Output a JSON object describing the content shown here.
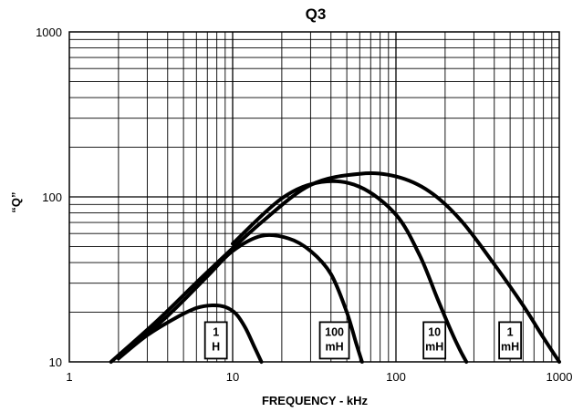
{
  "chart_data": {
    "type": "line",
    "title": "Q3",
    "xlabel": "FREQUENCY - kHz",
    "ylabel": "“Q”",
    "x_scale": "log",
    "y_scale": "log",
    "xlim": [
      1,
      1000
    ],
    "ylim": [
      10,
      1000
    ],
    "x_ticks": [
      "1",
      "10",
      "100",
      "1000"
    ],
    "y_ticks": [
      "10",
      "100",
      "1000"
    ],
    "grid": true,
    "legend": "none",
    "series": [
      {
        "name": "1 H",
        "label_lines": [
          "1",
          "H"
        ],
        "label_at": [
          7.9,
          13.5
        ],
        "x": [
          2.0,
          3.0,
          4.5,
          6.0,
          7.5,
          9.0,
          10.5,
          12.0,
          13.5,
          15.0
        ],
        "y": [
          10.5,
          14.5,
          18.5,
          21.2,
          22.0,
          21.5,
          19.5,
          16.0,
          12.5,
          10.0
        ]
      },
      {
        "name": "100 mH",
        "label_lines": [
          "100",
          "mH"
        ],
        "label_at": [
          42,
          13.5
        ],
        "x": [
          2.0,
          4.0,
          7.0,
          10.0,
          15.0,
          22.0,
          30.0,
          40.0,
          50.0,
          57.0,
          62.0
        ],
        "y": [
          10.5,
          19.0,
          33.0,
          47.0,
          58.0,
          56.0,
          47.0,
          34.0,
          20.0,
          13.0,
          10.0
        ]
      },
      {
        "name": "10 mH",
        "label_lines": [
          "10",
          "mH"
        ],
        "label_at": [
          172,
          13.5
        ],
        "x": [
          10.0,
          20.0,
          35.0,
          60.0,
          100.0,
          140.0,
          180.0,
          220.0,
          250.0,
          270.0
        ],
        "y": [
          52.0,
          98.0,
          123.0,
          115.0,
          78.0,
          44.0,
          24.0,
          15.0,
          11.5,
          10.0
        ]
      },
      {
        "name": "1 mH",
        "label_lines": [
          "1",
          "mH"
        ],
        "label_at": [
          500,
          13.5
        ],
        "x": [
          1.8,
          3.5,
          7.0,
          15.0,
          30.0,
          60.0,
          100.0,
          160.0,
          250.0,
          400.0,
          600.0,
          800.0,
          1000.0
        ],
        "y": [
          10.0,
          18.0,
          35.0,
          70.0,
          118.0,
          138.0,
          133.0,
          108.0,
          72.0,
          39.0,
          22.0,
          14.0,
          10.0
        ]
      }
    ]
  }
}
